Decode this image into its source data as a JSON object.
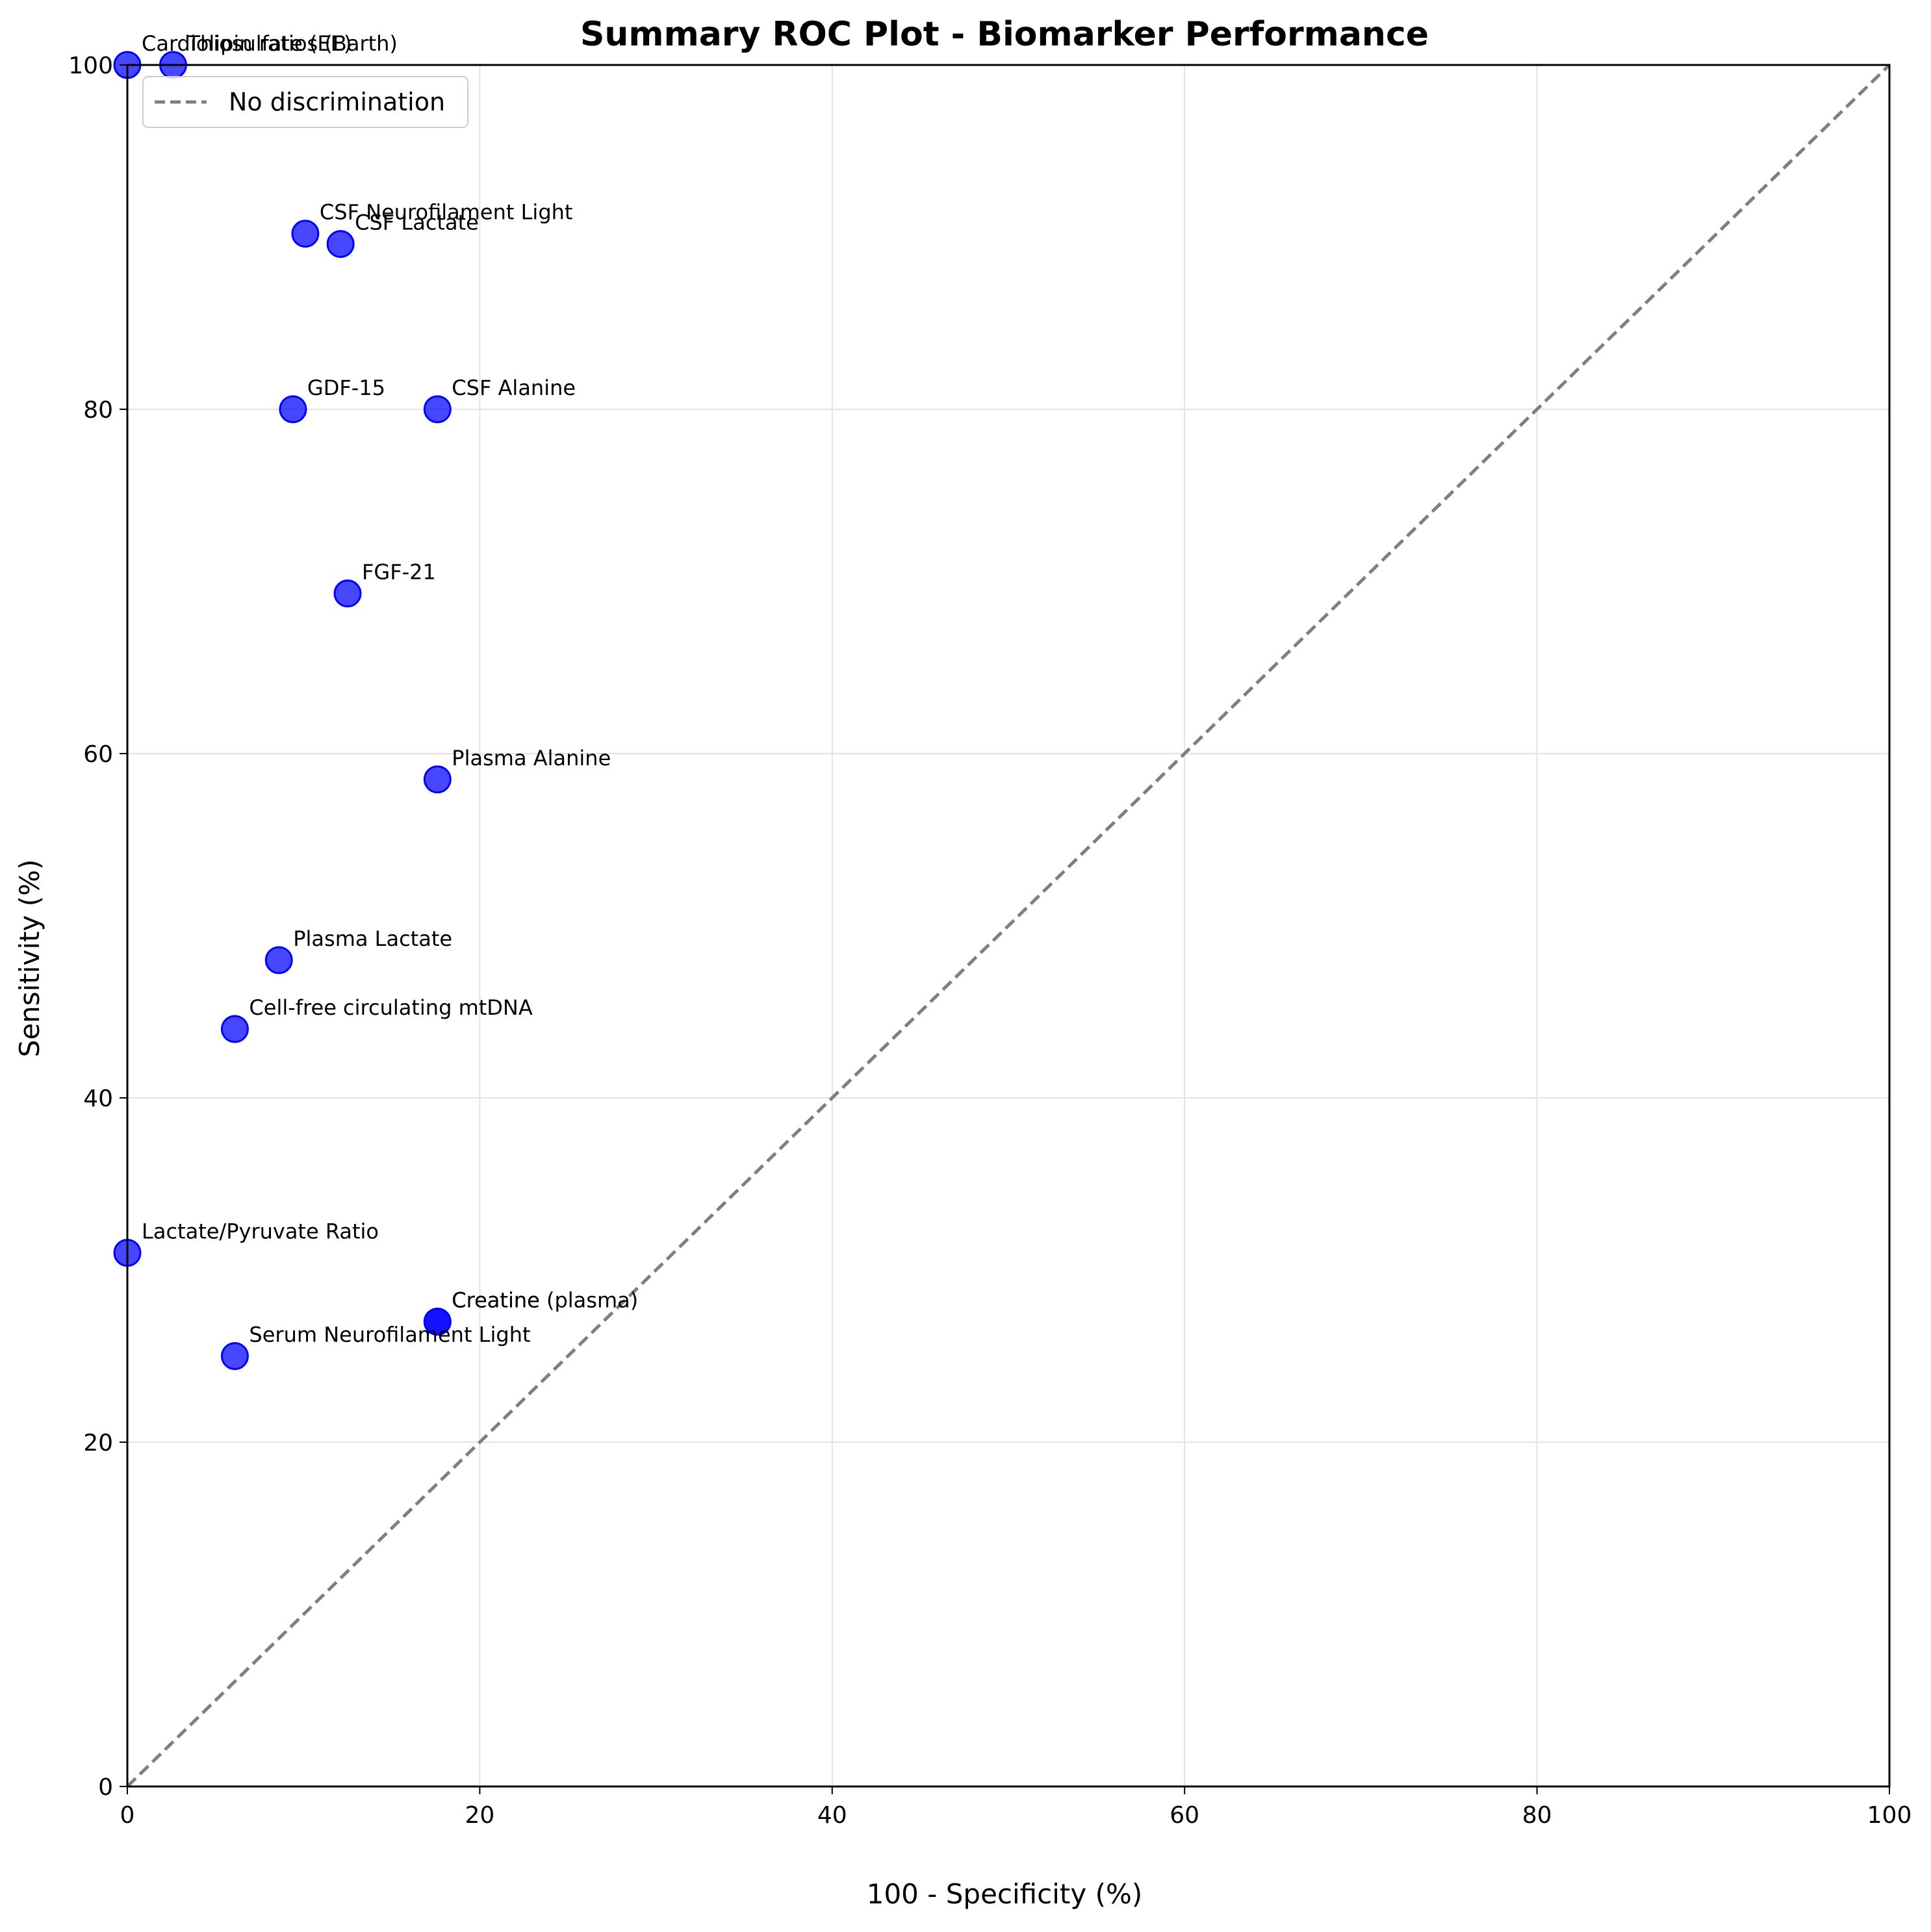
{
  "chart_data": {
    "type": "scatter",
    "title": "Summary ROC Plot - Biomarker Performance",
    "xlabel": "100 - Specificity (%)",
    "ylabel": "Sensitivity (%)",
    "xlim": [
      0,
      100
    ],
    "ylim": [
      0,
      100
    ],
    "xticks": [
      "0",
      "20",
      "40",
      "60",
      "80",
      "100"
    ],
    "yticks": [
      "0",
      "20",
      "40",
      "60",
      "80",
      "100"
    ],
    "grid": true,
    "legend": {
      "placement": "top-left",
      "entries": [
        "No discrimination"
      ]
    },
    "reference_line": {
      "label": "No discrimination",
      "x": [
        0,
        100
      ],
      "y": [
        0,
        100
      ],
      "color": "#7f7f7f",
      "style": "dashed"
    },
    "point_color": "#0000ff",
    "points": [
      {
        "label": "Cardiolipin ratios (Barth)",
        "x": 0,
        "y": 100
      },
      {
        "label": "Thiosulfate (EE)",
        "x": 2.6,
        "y": 100
      },
      {
        "label": "CSF Neurofilament Light",
        "x": 10.1,
        "y": 90.2
      },
      {
        "label": "CSF Lactate",
        "x": 12.1,
        "y": 89.6
      },
      {
        "label": "GDF-15",
        "x": 9.4,
        "y": 80
      },
      {
        "label": "CSF Alanine",
        "x": 17.6,
        "y": 80
      },
      {
        "label": "FGF-21",
        "x": 12.5,
        "y": 69.3
      },
      {
        "label": "Plasma Alanine",
        "x": 17.6,
        "y": 58.5
      },
      {
        "label": "Plasma Lactate",
        "x": 8.6,
        "y": 48
      },
      {
        "label": "Cell-free circulating mtDNA",
        "x": 6.1,
        "y": 44
      },
      {
        "label": "Lactate/Pyruvate Ratio",
        "x": 0,
        "y": 31
      },
      {
        "label": "Creatine",
        "x": 17.6,
        "y": 27
      },
      {
        "label": "Creatine (plasma)",
        "x": 17.6,
        "y": 27
      },
      {
        "label": "Serum Neurofilament Light",
        "x": 6.1,
        "y": 25
      }
    ]
  }
}
